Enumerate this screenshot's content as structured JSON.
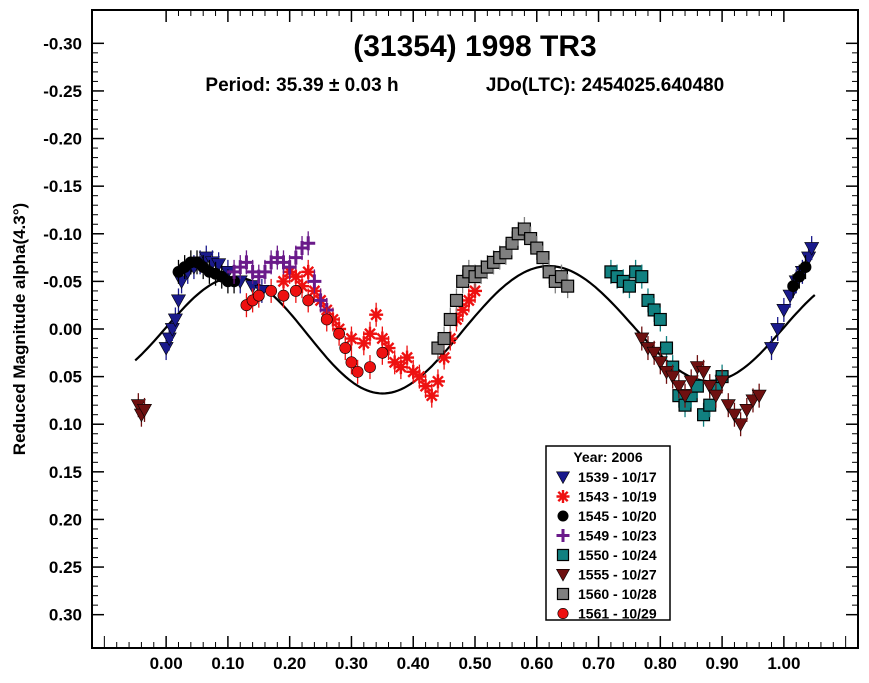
{
  "chart_data": {
    "type": "scatter",
    "title": "(31354) 1998 TR3",
    "subtitle_period": "Period: 35.39 ± 0.03 h",
    "subtitle_epoch": "JDo(LTC): 2454025.640480",
    "xlabel": "",
    "ylabel": "Reduced Magnitude alpha(4.3°)",
    "xlim": [
      -0.12,
      1.12
    ],
    "ylim": [
      -0.335,
      0.335
    ],
    "y_inverted": true,
    "x_ticks": [
      0.0,
      0.1,
      0.2,
      0.3,
      0.4,
      0.5,
      0.6,
      0.7,
      0.8,
      0.9,
      1.0
    ],
    "x_tick_labels": [
      "0.00",
      "0.10",
      "0.20",
      "0.30",
      "0.40",
      "0.50",
      "0.60",
      "0.70",
      "0.80",
      "0.90",
      "1.00"
    ],
    "y_ticks": [
      -0.3,
      -0.25,
      -0.2,
      -0.15,
      -0.1,
      -0.05,
      0.0,
      0.05,
      0.1,
      0.15,
      0.2,
      0.25,
      0.3
    ],
    "y_tick_labels": [
      "-0.30",
      "-0.25",
      "-0.20",
      "-0.15",
      "-0.10",
      "-0.05",
      "0.00",
      "0.05",
      "0.10",
      "0.15",
      "0.20",
      "0.25",
      "0.30"
    ],
    "grid": false,
    "legend_title": "Year: 2006",
    "legend_position": "bottom-right",
    "series": [
      {
        "name": "1539 - 10/17",
        "color": "#1a1a8c",
        "marker": "triangle-down",
        "points": [
          [
            0.0,
            0.02
          ],
          [
            0.005,
            0.01
          ],
          [
            0.01,
            0.0
          ],
          [
            0.015,
            -0.01
          ],
          [
            0.02,
            -0.03
          ],
          [
            0.025,
            -0.05
          ],
          [
            0.035,
            -0.06
          ],
          [
            0.045,
            -0.065
          ],
          [
            0.055,
            -0.07
          ],
          [
            0.065,
            -0.075
          ],
          [
            0.075,
            -0.07
          ],
          [
            0.085,
            -0.068
          ],
          [
            0.1,
            -0.06
          ],
          [
            0.12,
            -0.05
          ],
          [
            0.14,
            -0.045
          ],
          [
            0.155,
            -0.04
          ],
          [
            0.98,
            0.02
          ],
          [
            0.99,
            0.0
          ],
          [
            1.0,
            -0.02
          ],
          [
            1.01,
            -0.035
          ],
          [
            1.02,
            -0.05
          ],
          [
            1.03,
            -0.06
          ],
          [
            1.04,
            -0.075
          ],
          [
            1.045,
            -0.085
          ]
        ]
      },
      {
        "name": "1543 - 10/19",
        "color": "#ee1111",
        "marker": "asterisk",
        "points": [
          [
            0.19,
            -0.05
          ],
          [
            0.2,
            -0.06
          ],
          [
            0.21,
            -0.055
          ],
          [
            0.22,
            -0.045
          ],
          [
            0.23,
            -0.06
          ],
          [
            0.24,
            -0.04
          ],
          [
            0.25,
            -0.03
          ],
          [
            0.26,
            -0.02
          ],
          [
            0.27,
            -0.01
          ],
          [
            0.28,
            0.0
          ],
          [
            0.3,
            0.01
          ],
          [
            0.32,
            0.015
          ],
          [
            0.33,
            0.005
          ],
          [
            0.34,
            -0.015
          ],
          [
            0.35,
            0.01
          ],
          [
            0.36,
            0.02
          ],
          [
            0.37,
            0.035
          ],
          [
            0.38,
            0.04
          ],
          [
            0.39,
            0.03
          ],
          [
            0.4,
            0.045
          ],
          [
            0.41,
            0.05
          ],
          [
            0.42,
            0.06
          ],
          [
            0.43,
            0.07
          ],
          [
            0.44,
            0.055
          ],
          [
            0.45,
            0.03
          ],
          [
            0.46,
            0.01
          ],
          [
            0.47,
            -0.01
          ],
          [
            0.48,
            -0.02
          ],
          [
            0.49,
            -0.03
          ],
          [
            0.5,
            -0.04
          ]
        ]
      },
      {
        "name": "1545 - 10/20",
        "color": "#000000",
        "marker": "circle",
        "points": [
          [
            0.02,
            -0.06
          ],
          [
            0.03,
            -0.065
          ],
          [
            0.04,
            -0.07
          ],
          [
            0.05,
            -0.07
          ],
          [
            0.06,
            -0.065
          ],
          [
            0.07,
            -0.06
          ],
          [
            0.08,
            -0.058
          ],
          [
            0.09,
            -0.055
          ],
          [
            0.1,
            -0.05
          ],
          [
            0.11,
            -0.05
          ],
          [
            1.015,
            -0.045
          ],
          [
            1.025,
            -0.055
          ],
          [
            1.035,
            -0.065
          ]
        ]
      },
      {
        "name": "1549 - 10/23",
        "color": "#6a1a8a",
        "marker": "plus",
        "points": [
          [
            0.11,
            -0.06
          ],
          [
            0.12,
            -0.065
          ],
          [
            0.13,
            -0.07
          ],
          [
            0.14,
            -0.06
          ],
          [
            0.15,
            -0.055
          ],
          [
            0.16,
            -0.06
          ],
          [
            0.17,
            -0.07
          ],
          [
            0.18,
            -0.075
          ],
          [
            0.19,
            -0.07
          ],
          [
            0.2,
            -0.065
          ],
          [
            0.21,
            -0.075
          ],
          [
            0.22,
            -0.085
          ],
          [
            0.23,
            -0.09
          ],
          [
            0.24,
            -0.05
          ],
          [
            0.25,
            -0.03
          ],
          [
            0.26,
            -0.02
          ]
        ]
      },
      {
        "name": "1550 - 10/24",
        "color": "#118080",
        "marker": "square",
        "points": [
          [
            0.72,
            -0.06
          ],
          [
            0.73,
            -0.055
          ],
          [
            0.74,
            -0.05
          ],
          [
            0.75,
            -0.045
          ],
          [
            0.76,
            -0.06
          ],
          [
            0.77,
            -0.055
          ],
          [
            0.78,
            -0.03
          ],
          [
            0.79,
            -0.02
          ],
          [
            0.8,
            -0.01
          ],
          [
            0.81,
            0.02
          ],
          [
            0.82,
            0.04
          ],
          [
            0.83,
            0.07
          ],
          [
            0.84,
            0.08
          ],
          [
            0.85,
            0.07
          ],
          [
            0.86,
            0.06
          ],
          [
            0.87,
            0.09
          ],
          [
            0.88,
            0.08
          ],
          [
            0.89,
            0.06
          ],
          [
            0.9,
            0.05
          ]
        ]
      },
      {
        "name": "1555 - 10/27",
        "color": "#6e1010",
        "marker": "triangle-down",
        "points": [
          [
            -0.045,
            0.08
          ],
          [
            -0.04,
            0.09
          ],
          [
            -0.035,
            0.085
          ],
          [
            0.77,
            0.01
          ],
          [
            0.78,
            0.02
          ],
          [
            0.79,
            0.025
          ],
          [
            0.8,
            0.035
          ],
          [
            0.81,
            0.045
          ],
          [
            0.82,
            0.05
          ],
          [
            0.83,
            0.06
          ],
          [
            0.84,
            0.07
          ],
          [
            0.85,
            0.055
          ],
          [
            0.86,
            0.04
          ],
          [
            0.87,
            0.045
          ],
          [
            0.88,
            0.06
          ],
          [
            0.89,
            0.07
          ],
          [
            0.9,
            0.055
          ],
          [
            0.91,
            0.08
          ],
          [
            0.92,
            0.09
          ],
          [
            0.93,
            0.1
          ],
          [
            0.94,
            0.085
          ],
          [
            0.95,
            0.075
          ],
          [
            0.96,
            0.07
          ]
        ]
      },
      {
        "name": "1560 - 10/28",
        "color": "#808080",
        "marker": "square",
        "points": [
          [
            0.44,
            0.02
          ],
          [
            0.45,
            0.01
          ],
          [
            0.46,
            -0.01
          ],
          [
            0.47,
            -0.03
          ],
          [
            0.48,
            -0.05
          ],
          [
            0.49,
            -0.06
          ],
          [
            0.5,
            -0.055
          ],
          [
            0.51,
            -0.06
          ],
          [
            0.52,
            -0.065
          ],
          [
            0.53,
            -0.07
          ],
          [
            0.54,
            -0.075
          ],
          [
            0.55,
            -0.08
          ],
          [
            0.56,
            -0.09
          ],
          [
            0.57,
            -0.1
          ],
          [
            0.58,
            -0.105
          ],
          [
            0.59,
            -0.095
          ],
          [
            0.6,
            -0.085
          ],
          [
            0.61,
            -0.075
          ],
          [
            0.62,
            -0.06
          ],
          [
            0.63,
            -0.05
          ],
          [
            0.64,
            -0.055
          ],
          [
            0.65,
            -0.045
          ]
        ]
      },
      {
        "name": "1561 - 10/29",
        "color": "#ee1111",
        "marker": "circle",
        "points": [
          [
            0.13,
            -0.025
          ],
          [
            0.14,
            -0.03
          ],
          [
            0.15,
            -0.035
          ],
          [
            0.17,
            -0.04
          ],
          [
            0.19,
            -0.035
          ],
          [
            0.21,
            -0.04
          ],
          [
            0.23,
            -0.03
          ],
          [
            0.26,
            -0.01
          ],
          [
            0.28,
            0.005
          ],
          [
            0.29,
            0.02
          ],
          [
            0.3,
            0.035
          ],
          [
            0.31,
            0.045
          ],
          [
            0.33,
            0.04
          ],
          [
            0.35,
            0.025
          ]
        ]
      }
    ],
    "fit_curve": {
      "color": "#000000"
    }
  }
}
